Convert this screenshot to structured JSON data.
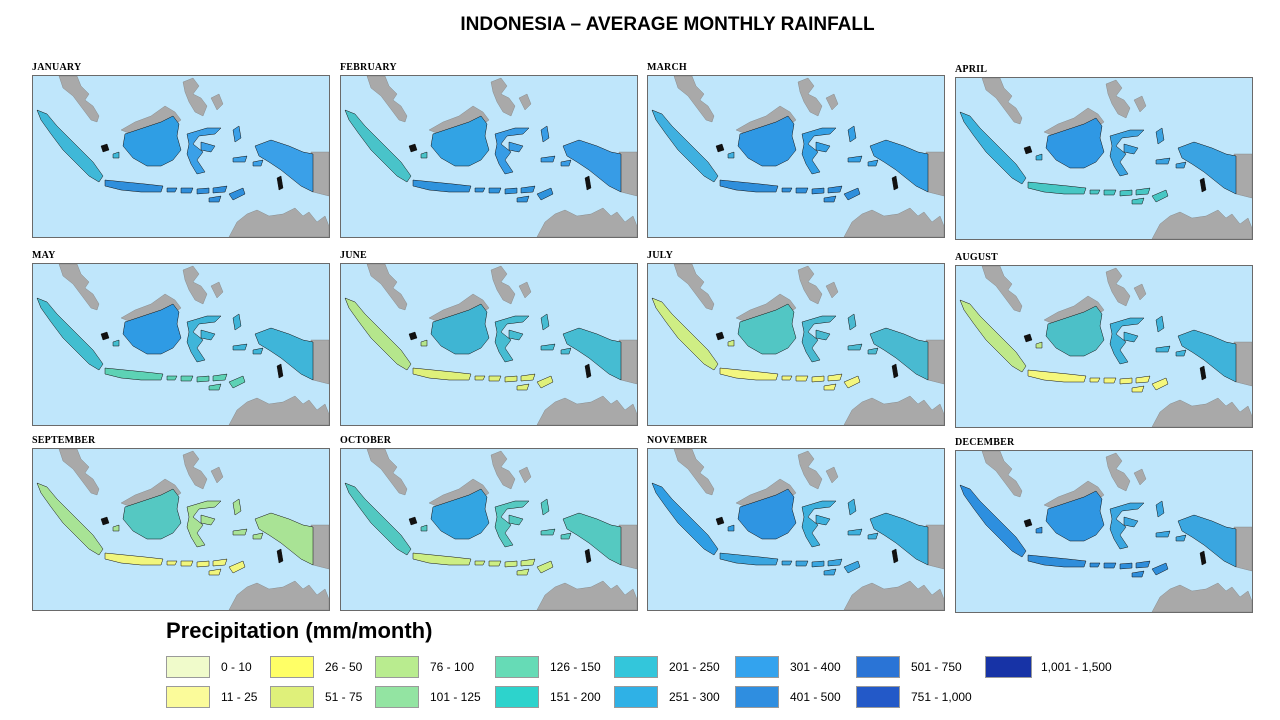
{
  "title": "INDONESIA – AVERAGE MONTHLY RAINFALL",
  "legend": {
    "title": "Precipitation (mm/month)",
    "classes": [
      {
        "label": "0 - 10",
        "color": "#f0fbcb"
      },
      {
        "label": "11 - 25",
        "color": "#fbfb9a"
      },
      {
        "label": "26 - 50",
        "color": "#ffff66"
      },
      {
        "label": "51 - 75",
        "color": "#dff07a"
      },
      {
        "label": "76 - 100",
        "color": "#b9ec8f"
      },
      {
        "label": "101 - 125",
        "color": "#93e4a2"
      },
      {
        "label": "126 - 150",
        "color": "#66dbb6"
      },
      {
        "label": "151 - 200",
        "color": "#2dd3cc"
      },
      {
        "label": "201 - 250",
        "color": "#33c6db"
      },
      {
        "label": "251 - 300",
        "color": "#2fb1e6"
      },
      {
        "label": "301 - 400",
        "color": "#33a3ee"
      },
      {
        "label": "401 - 500",
        "color": "#2f8ee0"
      },
      {
        "label": "501 - 750",
        "color": "#2a74d6"
      },
      {
        "label": "751 - 1,000",
        "color": "#2359c8"
      },
      {
        "label": "1,001 - 1,500",
        "color": "#1733a6"
      }
    ]
  },
  "colors": {
    "ocean": "#bfe6fb",
    "neighbor_land": "#a9a9a9",
    "frame_border": "#6a6a6a"
  },
  "months": [
    {
      "name": "JANUARY",
      "west": "#3fb8d8",
      "borneo": "#2f9ee4",
      "east": "#3aa0e8",
      "south": "#2f8fdc"
    },
    {
      "name": "FEBRUARY",
      "west": "#49c3c9",
      "borneo": "#32a3e4",
      "east": "#379ce6",
      "south": "#2f93dd"
    },
    {
      "name": "MARCH",
      "west": "#3fb0e0",
      "borneo": "#2f98e4",
      "east": "#33a0e6",
      "south": "#2f8fdc"
    },
    {
      "name": "APRIL",
      "west": "#3ab3de",
      "borneo": "#2f98e4",
      "east": "#3aa3e2",
      "south": "#47c7c4"
    },
    {
      "name": "MAY",
      "west": "#42bed0",
      "borneo": "#2f9be4",
      "east": "#3fb5d9",
      "south": "#5dd2b5"
    },
    {
      "name": "JUNE",
      "west": "#b5e68c",
      "borneo": "#3fb5d3",
      "east": "#46bcd2",
      "south": "#dff07a"
    },
    {
      "name": "JULY",
      "west": "#cfee84",
      "borneo": "#52c6c4",
      "east": "#49bad1",
      "south": "#f3f67f"
    },
    {
      "name": "AUGUST",
      "west": "#bfe98a",
      "borneo": "#4cc0c8",
      "east": "#3fb3da",
      "south": "#f5f77c"
    },
    {
      "name": "SEPTEMBER",
      "west": "#a8e395",
      "borneo": "#55c8c2",
      "east": "#a9e395",
      "south": "#f1f67d"
    },
    {
      "name": "OCTOBER",
      "west": "#52c8c1",
      "borneo": "#33a5e2",
      "east": "#55c9c1",
      "south": "#cdee84"
    },
    {
      "name": "NOVEMBER",
      "west": "#2f9ee4",
      "borneo": "#2f95e2",
      "east": "#3cb0dd",
      "south": "#3aa6e0"
    },
    {
      "name": "DECEMBER",
      "west": "#2d8fdf",
      "borneo": "#2f96e2",
      "east": "#3aa6e0",
      "south": "#2f8edb"
    }
  ]
}
